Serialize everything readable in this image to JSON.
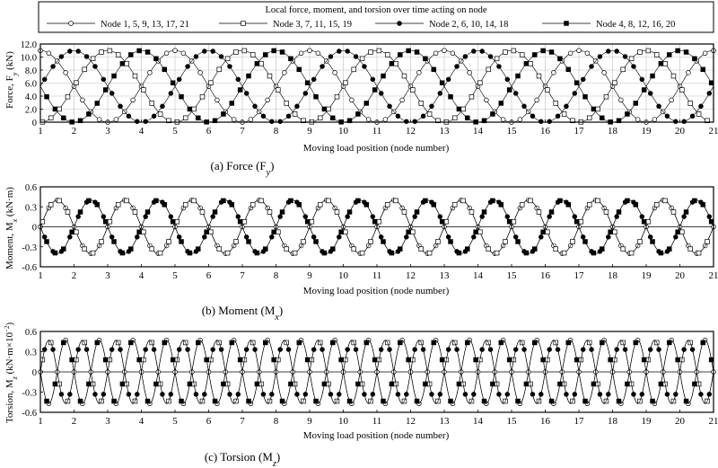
{
  "legend": {
    "title": "Local force, moment, and torsion over time acting on node",
    "entries": [
      {
        "label": "Node 1, 5, 9, 13, 17, 21",
        "marker": "circle-open"
      },
      {
        "label": "Node 3, 7, 11, 15, 19",
        "marker": "square-open"
      },
      {
        "label": "Node 2, 6, 10, 14, 18",
        "marker": "circle-filled"
      },
      {
        "label": "Node 4, 8, 12, 16, 20",
        "marker": "square-filled"
      }
    ]
  },
  "colors": {
    "line": "#000000",
    "grid": "#bfbfbf",
    "axis": "#000000",
    "background": "#ffffff"
  },
  "chart_data": [
    {
      "type": "line",
      "caption": "(a) Force (F",
      "caption_sub": "y",
      "caption_end": ")",
      "xlabel": "Moving load position (node number)",
      "ylabel": "Force, F",
      "ylabel_sub": "y",
      "ylabel_unit": " (kN)",
      "xlim": [
        1,
        21
      ],
      "ylim": [
        0,
        12
      ],
      "yticks": [
        "0",
        "2.0",
        "4.0",
        "6.0",
        "8.0",
        "10.0",
        "12.0"
      ],
      "xticks": [
        "1",
        "2",
        "3",
        "4",
        "5",
        "6",
        "7",
        "8",
        "9",
        "10",
        "11",
        "12",
        "13",
        "14",
        "15",
        "16",
        "17",
        "18",
        "19",
        "20",
        "21"
      ],
      "grid": true,
      "series": [
        {
          "name": "Node 1, 5, 9, 13, 17, 21",
          "amplitude": 5.5,
          "offset": 5.5,
          "period": 4,
          "phase": 1
        },
        {
          "name": "Node 3, 7, 11, 15, 19",
          "amplitude": 5.5,
          "offset": 5.5,
          "period": 4,
          "phase": 3
        },
        {
          "name": "Node 2, 6, 10, 14, 18",
          "amplitude": 5.5,
          "offset": 5.5,
          "period": 4,
          "phase": 2
        },
        {
          "name": "Node 4, 8, 12, 16, 20",
          "amplitude": 5.5,
          "offset": 5.5,
          "period": 4,
          "phase": 4
        }
      ]
    },
    {
      "type": "line",
      "caption": "(b) Moment (M",
      "caption_sub": "x",
      "caption_end": ")",
      "xlabel": "Moving load position (node number)",
      "ylabel": "Moment, M",
      "ylabel_sub": "x",
      "ylabel_unit": " (kN·m)",
      "xlim": [
        1,
        21
      ],
      "ylim": [
        -0.6,
        0.6
      ],
      "yticks": [
        "-0.6",
        "-0.3",
        "0",
        "0.3",
        "0.6"
      ],
      "xticks": [
        "1",
        "2",
        "3",
        "4",
        "5",
        "6",
        "7",
        "8",
        "9",
        "10",
        "11",
        "12",
        "13",
        "14",
        "15",
        "16",
        "17",
        "18",
        "19",
        "20",
        "21"
      ],
      "grid": false,
      "series": [
        {
          "name": "Node 1, 5, 9, 13, 17, 21",
          "amplitude": 0.4,
          "period": 2,
          "phase": 1
        },
        {
          "name": "Node 3, 7, 11, 15, 19",
          "amplitude": 0.4,
          "period": 2,
          "phase": 1
        },
        {
          "name": "Node 2, 6, 10, 14, 18",
          "amplitude": -0.4,
          "period": 2,
          "phase": 1
        },
        {
          "name": "Node 4, 8, 12, 16, 20",
          "amplitude": -0.4,
          "period": 2,
          "phase": 1
        }
      ]
    },
    {
      "type": "line",
      "caption": "(c) Torsion (M",
      "caption_sub": "z",
      "caption_end": ")",
      "xlabel": "Moving load position (node number)",
      "ylabel": "Torsion, M",
      "ylabel_sub": "z",
      "ylabel_unit": " (kN·m×10",
      "ylabel_sup": "−2",
      "ylabel_end": ")",
      "xlim": [
        1,
        21
      ],
      "ylim": [
        -0.6,
        0.6
      ],
      "yticks": [
        "-0.6",
        "-0.3",
        "0",
        "0.3",
        "0.6"
      ],
      "xticks": [
        "1",
        "2",
        "3",
        "4",
        "5",
        "6",
        "7",
        "8",
        "9",
        "10",
        "11",
        "12",
        "13",
        "14",
        "15",
        "16",
        "17",
        "18",
        "19",
        "20",
        "21"
      ],
      "grid": false,
      "series": [
        {
          "name": "Node 1, 5, 9, 13, 17, 21",
          "amplitude": -0.47,
          "period": 1,
          "phase": 1
        },
        {
          "name": "Node 3, 7, 11, 15, 19",
          "amplitude": 0.47,
          "period": 1,
          "phase": 1
        },
        {
          "name": "Node 2, 6, 10, 14, 18",
          "amplitude": 0.47,
          "period": 1,
          "phase": 1
        },
        {
          "name": "Node 4, 8, 12, 16, 20",
          "amplitude": -0.47,
          "period": 1,
          "phase": 1
        }
      ]
    }
  ]
}
